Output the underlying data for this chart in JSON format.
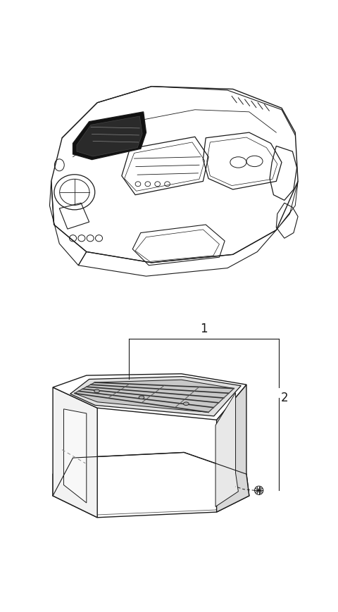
{
  "background_color": "#ffffff",
  "figsize": [
    4.8,
    8.7
  ],
  "dpi": 100,
  "label1": "1",
  "label2": "2",
  "line_color": "#1a1a1a",
  "line_color_light": "#555555",
  "fill_white": "#ffffff",
  "fill_light": "#f2f2f2",
  "fill_mid": "#d8d8d8",
  "fill_dark": "#111111"
}
